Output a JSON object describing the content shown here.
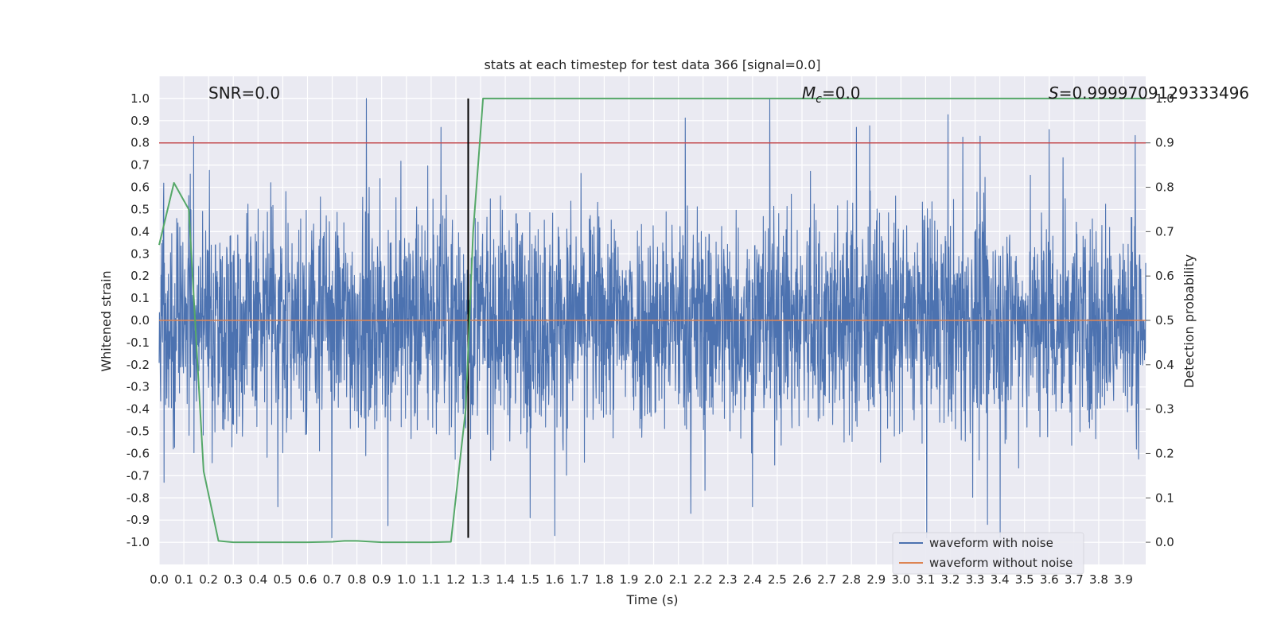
{
  "chart_data": {
    "type": "line",
    "title": "stats at each timestep for test data 366 [signal=0.0]",
    "xlabel": "Time (s)",
    "ylabel": "Whitened strain",
    "y2label": "Detection probability",
    "xlim": [
      0.0,
      3.99
    ],
    "ylim": [
      -1.1,
      1.1
    ],
    "y2lim": [
      -0.05,
      1.05
    ],
    "xticks": [
      "0.0",
      "0.1",
      "0.2",
      "0.3",
      "0.4",
      "0.5",
      "0.6",
      "0.7",
      "0.8",
      "0.9",
      "1.0",
      "1.1",
      "1.2",
      "1.3",
      "1.4",
      "1.5",
      "1.6",
      "1.7",
      "1.8",
      "1.9",
      "2.0",
      "2.1",
      "2.2",
      "2.3",
      "2.4",
      "2.5",
      "2.6",
      "2.7",
      "2.8",
      "2.9",
      "3.0",
      "3.1",
      "3.2",
      "3.3",
      "3.4",
      "3.5",
      "3.6",
      "3.7",
      "3.8",
      "3.9"
    ],
    "yticks": [
      "1.0",
      "0.9",
      "0.8",
      "0.7",
      "0.6",
      "0.5",
      "0.4",
      "0.3",
      "0.2",
      "0.1",
      "0.0",
      "-0.1",
      "-0.2",
      "-0.3",
      "-0.4",
      "-0.5",
      "-0.6",
      "-0.7",
      "-0.8",
      "-0.9",
      "-1.0"
    ],
    "y2ticks": [
      "1.0",
      "0.9",
      "0.8",
      "0.7",
      "0.6",
      "0.5",
      "0.4",
      "0.3",
      "0.2",
      "0.1",
      "0.0"
    ],
    "grid": true,
    "annotations": {
      "snr": "SNR=0.0",
      "mc_symbol": "M",
      "mc_sub": "c",
      "mc_value": "=0.0",
      "s_symbol": "S",
      "s_value": "=0.9999709129333496"
    },
    "threshold_y2": 0.9,
    "vertical_marker_x": 1.25,
    "series": [
      {
        "name": "waveform with noise",
        "color": "#4c72b0",
        "style": "noise",
        "range": [
          -0.98,
          1.0
        ],
        "peaks": [
          {
            "x": 0.14,
            "y": 0.83
          },
          {
            "x": 1.14,
            "y": 0.87
          },
          {
            "x": 2.47,
            "y": 1.0
          },
          {
            "x": 2.82,
            "y": 0.87
          },
          {
            "x": 3.6,
            "y": 0.86
          },
          {
            "x": 3.32,
            "y": 0.83
          },
          {
            "x": 1.6,
            "y": -0.97
          },
          {
            "x": 3.35,
            "y": -0.92
          },
          {
            "x": 2.4,
            "y": -0.84
          },
          {
            "x": 0.48,
            "y": -0.84
          },
          {
            "x": 1.5,
            "y": -0.89
          },
          {
            "x": 2.15,
            "y": -0.87
          },
          {
            "x": 0.02,
            "y": -0.73
          }
        ]
      },
      {
        "name": "waveform without noise",
        "color": "#dd8452",
        "style": "flat",
        "value": 0.0
      },
      {
        "name": "detection probability",
        "color": "#55a868",
        "axis": "y2",
        "x": [
          0.0,
          0.06,
          0.12,
          0.18,
          0.24,
          0.3,
          0.4,
          0.5,
          0.6,
          0.7,
          0.75,
          0.8,
          0.9,
          1.0,
          1.1,
          1.18,
          1.24,
          1.27,
          1.31,
          1.5,
          2.0,
          2.5,
          3.0,
          3.5,
          3.99
        ],
        "values": [
          0.67,
          0.81,
          0.75,
          0.16,
          0.003,
          0.0,
          0.0,
          0.0,
          0.0,
          0.001,
          0.003,
          0.003,
          0.0,
          0.0,
          0.0,
          0.001,
          0.3,
          0.7,
          1.0,
          1.0,
          1.0,
          1.0,
          1.0,
          1.0,
          1.0
        ]
      },
      {
        "name": "threshold",
        "color": "#c44e52",
        "axis": "y2",
        "value": 0.9
      }
    ],
    "legend": {
      "placement": "lower-right",
      "entries": [
        {
          "label": "waveform with noise",
          "color": "#4c72b0"
        },
        {
          "label": "waveform without noise",
          "color": "#dd8452"
        }
      ]
    },
    "colors": {
      "background": "#eaeaf2",
      "grid": "#ffffff",
      "marker": "#000000"
    }
  }
}
